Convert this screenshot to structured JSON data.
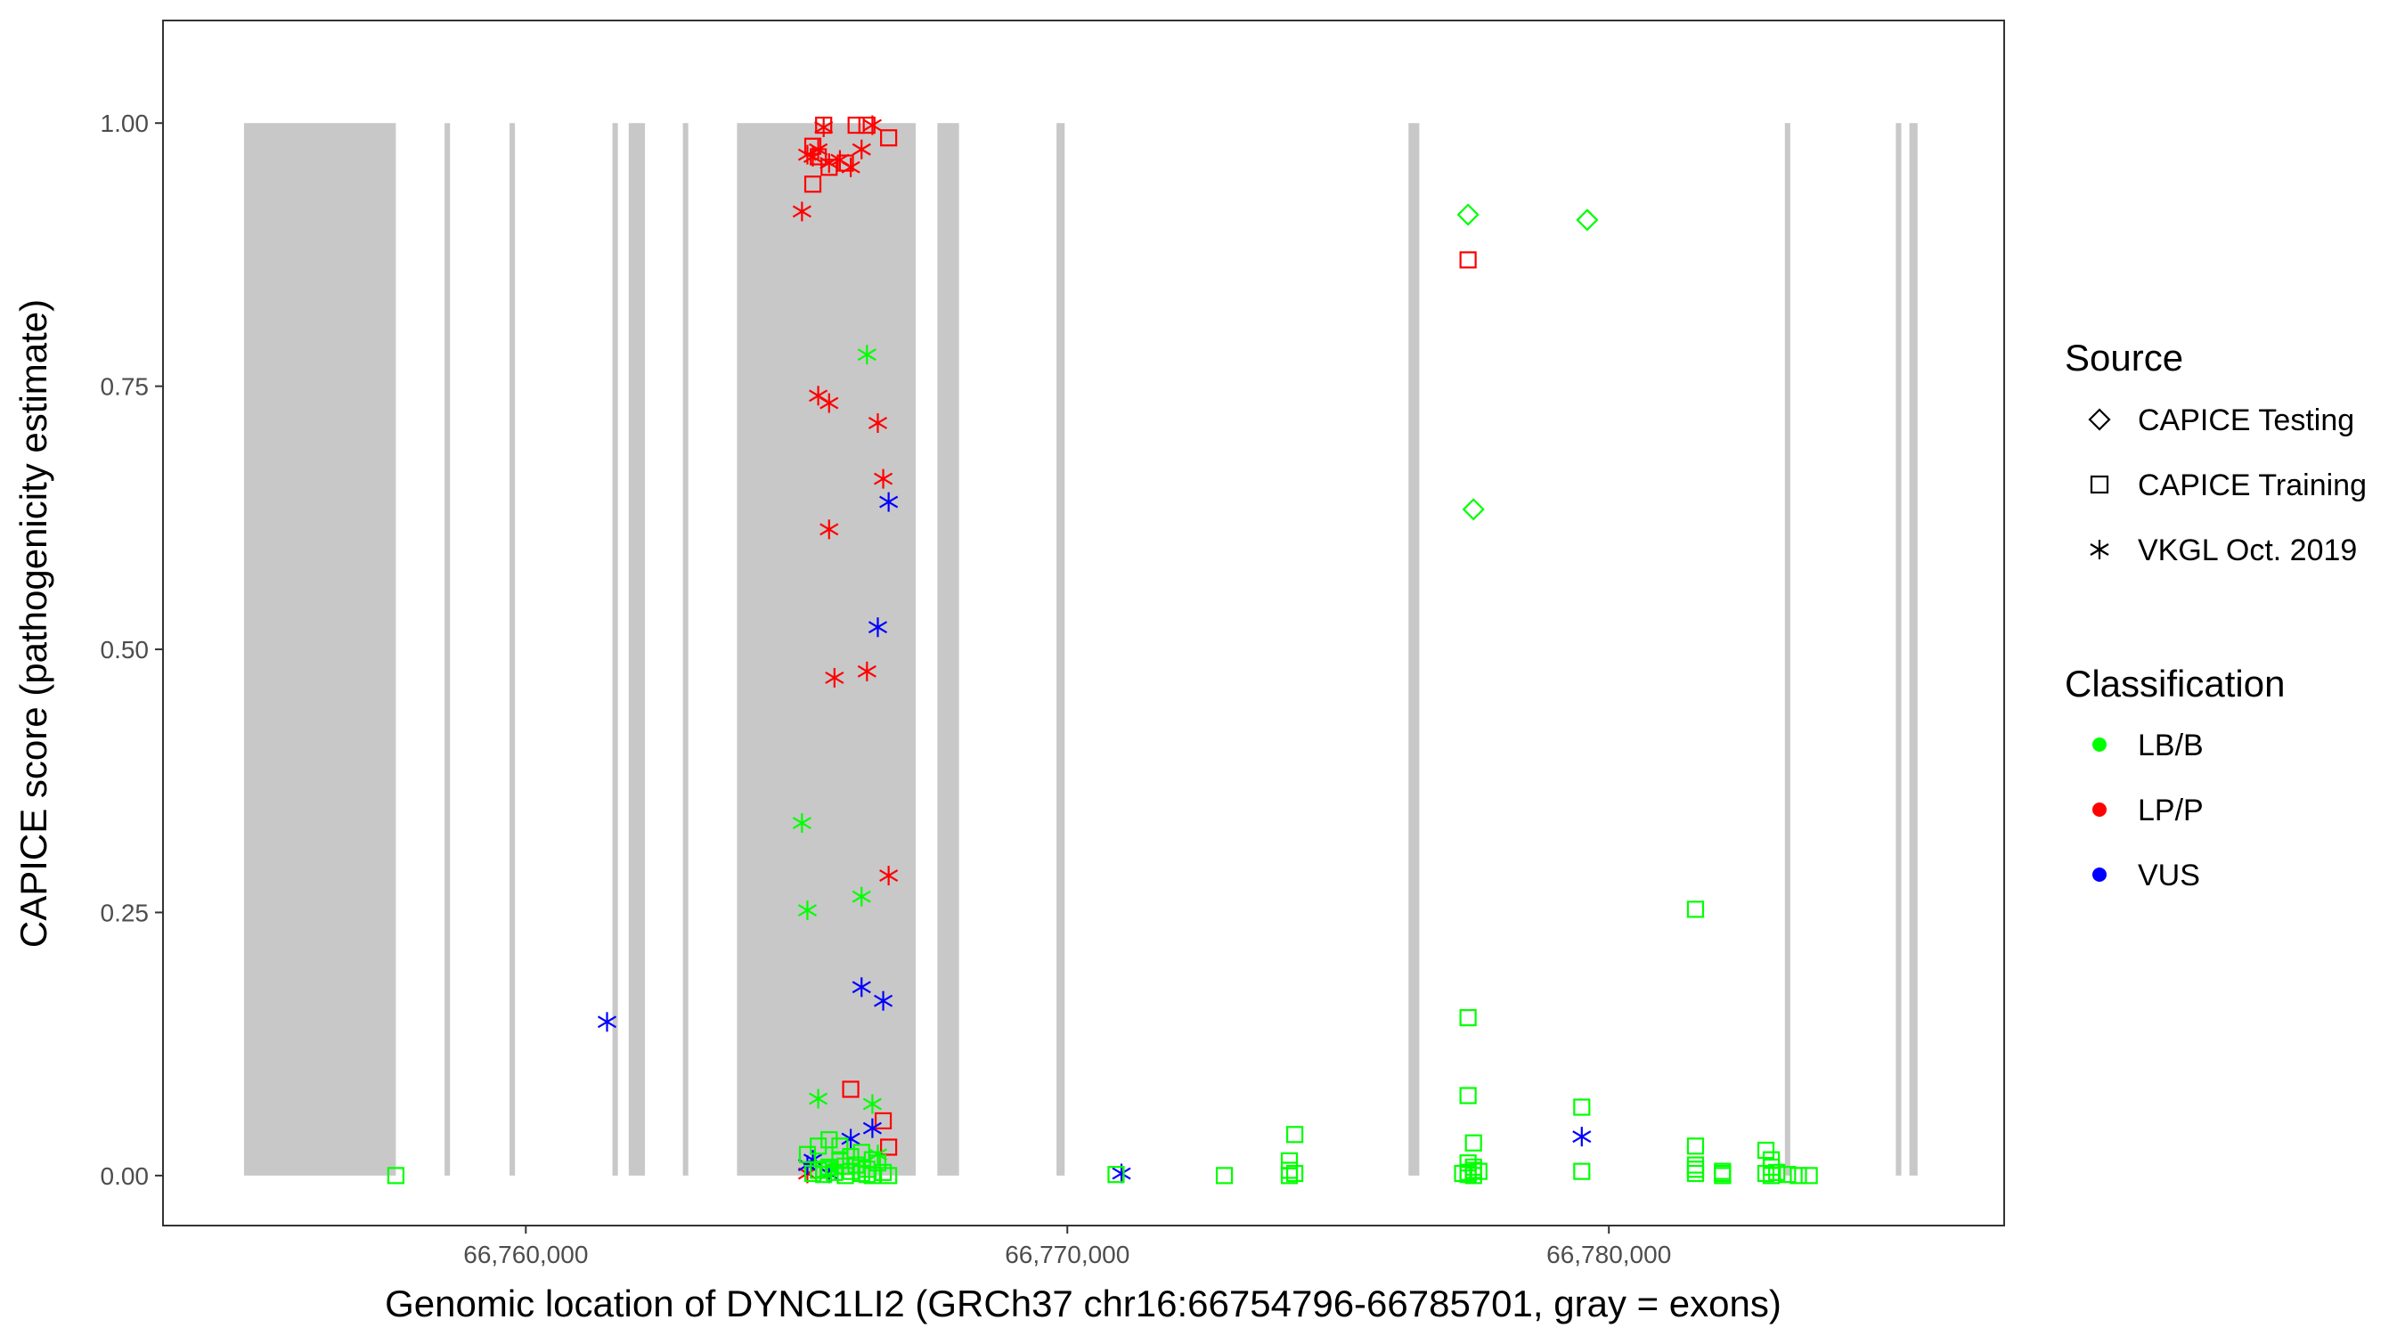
{
  "chart_data": {
    "type": "scatter",
    "xlabel": "Genomic location of DYNC1LI2 (GRCh37 chr16:66754796-66785701, gray = exons)",
    "ylabel": "CAPICE score (pathogenicity estimate)",
    "xlim": [
      66753300,
      66787300
    ],
    "ylim": [
      -0.0475,
      1.0975
    ],
    "x_ticks": [
      66760000,
      66770000,
      66780000
    ],
    "x_tick_labels": [
      "66,760,000",
      "66,770,000",
      "66,780,000"
    ],
    "y_ticks": [
      0.0,
      0.25,
      0.5,
      0.75,
      1.0
    ],
    "y_tick_labels": [
      "0.00",
      "0.25",
      "0.50",
      "0.75",
      "1.00"
    ],
    "grid": false,
    "exons": [
      [
        66754796,
        66757600
      ],
      [
        66758500,
        66758600
      ],
      [
        66759700,
        66759800
      ],
      [
        66761600,
        66761700
      ],
      [
        66761900,
        66762200
      ],
      [
        66762900,
        66763000
      ],
      [
        66763900,
        66767200
      ],
      [
        66767600,
        66768000
      ],
      [
        66769800,
        66769950
      ],
      [
        66776300,
        66776500
      ],
      [
        66783250,
        66783350
      ],
      [
        66785300,
        66785400
      ],
      [
        66785550,
        66785701
      ]
    ],
    "exon_color": "#c8c8c8",
    "legend": {
      "source_title": "Source",
      "source_items": [
        {
          "shape": "diamond",
          "label": "CAPICE Testing"
        },
        {
          "shape": "square",
          "label": "CAPICE Training"
        },
        {
          "shape": "asterisk",
          "label": "VKGL Oct. 2019"
        }
      ],
      "class_title": "Classification",
      "class_items": [
        {
          "key": "LB/B",
          "label": "LB/B",
          "color": "#00ff00"
        },
        {
          "key": "LP/P",
          "label": "LP/P",
          "color": "#ff0000"
        },
        {
          "key": "VUS",
          "label": "VUS",
          "color": "#0000ff"
        }
      ]
    },
    "series": [
      {
        "source": "CAPICE Testing",
        "classification": "LB/B",
        "x": [
          66777400,
          66779600,
          66777500
        ],
        "y": [
          0.913,
          0.908,
          0.633
        ]
      },
      {
        "source": "CAPICE Training",
        "classification": "LP/P",
        "x": [
          66765300,
          66765500,
          66765300,
          66765600,
          66766100,
          66766300,
          66765400,
          66765900,
          66766700,
          66777400,
          66766000,
          66766600,
          66766700
        ],
        "y": [
          0.978,
          0.998,
          0.942,
          0.958,
          0.998,
          0.998,
          0.968,
          0.962,
          0.986,
          0.87,
          0.082,
          0.052,
          0.027
        ]
      },
      {
        "source": "VKGL Oct. 2019",
        "classification": "LP/P",
        "x": [
          66765200,
          66765400,
          66765600,
          66765800,
          66766000,
          66766200,
          66765300,
          66765500,
          66766400,
          66765100,
          66765400,
          66765600,
          66766500,
          66766600,
          66765600,
          66765700,
          66766300,
          66766700,
          66765200
        ],
        "y": [
          0.97,
          0.975,
          0.962,
          0.965,
          0.958,
          0.975,
          0.968,
          0.996,
          0.998,
          0.916,
          0.741,
          0.734,
          0.715,
          0.662,
          0.614,
          0.473,
          0.479,
          0.285,
          0.002
        ]
      },
      {
        "source": "VKGL Oct. 2019",
        "classification": "VUS",
        "x": [
          66766700,
          66766500,
          66761500,
          66766200,
          66766600,
          66766400,
          66766000,
          66765300,
          66765600,
          66765200,
          66771000,
          66779500
        ],
        "y": [
          0.64,
          0.521,
          0.146,
          0.179,
          0.166,
          0.045,
          0.035,
          0.015,
          0.002,
          0.01,
          0.002,
          0.037
        ]
      },
      {
        "source": "VKGL Oct. 2019",
        "classification": "LB/B",
        "x": [
          66766300,
          66765100,
          66765200,
          66766200,
          66765400,
          66766400,
          66766500,
          66765700
        ],
        "y": [
          0.78,
          0.335,
          0.252,
          0.265,
          0.073,
          0.068,
          0.02,
          0.005
        ]
      },
      {
        "source": "CAPICE Training",
        "classification": "LB/B",
        "x": [
          66757600,
          66765300,
          66765400,
          66765500,
          66765600,
          66765700,
          66765800,
          66765900,
          66766000,
          66766100,
          66766200,
          66766300,
          66766400,
          66766500,
          66766600,
          66766700,
          66765200,
          66765400,
          66765600,
          66765800,
          66766000,
          66766200,
          66766400,
          66765500,
          66765900,
          66766300,
          66770900,
          66772900,
          66774200,
          66774100,
          66774100,
          66774200,
          66774100,
          66777400,
          66777400,
          66777500,
          66777400,
          66777500,
          66777500,
          66777300,
          66777400,
          66777500,
          66777600,
          66777400,
          66779500,
          66779500,
          66781600,
          66781600,
          66781600,
          66781600,
          66781600,
          66782100,
          66782100,
          66782100,
          66782900,
          66783000,
          66783000,
          66783100,
          66782900,
          66783000,
          66783300,
          66783500,
          66783700
        ],
        "y": [
          0.0,
          0.002,
          0.005,
          0.001,
          0.008,
          0.003,
          0.015,
          0.0,
          0.004,
          0.01,
          0.002,
          0.006,
          0.0,
          0.012,
          0.003,
          0.0,
          0.02,
          0.028,
          0.034,
          0.028,
          0.018,
          0.022,
          0.015,
          0.006,
          0.009,
          0.001,
          0.001,
          0.0,
          0.039,
          0.014,
          0.005,
          0.002,
          0.0,
          0.15,
          0.076,
          0.031,
          0.012,
          0.008,
          0.005,
          0.002,
          0.003,
          0.0,
          0.004,
          0.001,
          0.065,
          0.004,
          0.253,
          0.028,
          0.01,
          0.006,
          0.002,
          0.004,
          0.002,
          0.0,
          0.024,
          0.015,
          0.008,
          0.003,
          0.002,
          0.0,
          0.001,
          0.0,
          0.0
        ]
      }
    ]
  }
}
